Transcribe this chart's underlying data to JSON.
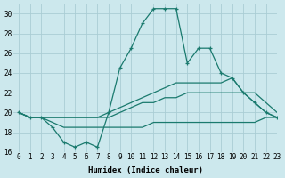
{
  "xlabel": "Humidex (Indice chaleur)",
  "xlim": [
    -0.5,
    23
  ],
  "ylim": [
    16,
    31
  ],
  "yticks": [
    16,
    18,
    20,
    22,
    24,
    26,
    28,
    30
  ],
  "xticks": [
    0,
    1,
    2,
    3,
    4,
    5,
    6,
    7,
    8,
    9,
    10,
    11,
    12,
    13,
    14,
    15,
    16,
    17,
    18,
    19,
    20,
    21,
    22,
    23
  ],
  "bg_color": "#cce8ed",
  "grid_color": "#aacdd4",
  "line_color": "#1a7a6e",
  "lines": [
    {
      "x": [
        0,
        1,
        2,
        3,
        4,
        5,
        6,
        7,
        8,
        9,
        10,
        11,
        12,
        13,
        14,
        15,
        16,
        17,
        18,
        19,
        20,
        21,
        22,
        23
      ],
      "y": [
        20,
        19.5,
        19.5,
        19,
        18.5,
        18.5,
        18.5,
        18.5,
        18.5,
        18.5,
        18.5,
        18.5,
        19,
        19,
        19,
        19,
        19,
        19,
        19,
        19,
        19,
        19,
        19.5,
        19.5
      ],
      "marker": false,
      "lw": 0.9
    },
    {
      "x": [
        0,
        1,
        2,
        3,
        4,
        5,
        6,
        7,
        8,
        9,
        10,
        11,
        12,
        13,
        14,
        15,
        16,
        17,
        18,
        19,
        20,
        21,
        22,
        23
      ],
      "y": [
        20,
        19.5,
        19.5,
        19.5,
        19.5,
        19.5,
        19.5,
        19.5,
        19.5,
        20,
        20.5,
        21,
        21,
        21.5,
        21.5,
        22,
        22,
        22,
        22,
        22,
        22,
        22,
        21,
        20
      ],
      "marker": false,
      "lw": 0.9
    },
    {
      "x": [
        0,
        1,
        2,
        3,
        4,
        5,
        6,
        7,
        8,
        9,
        10,
        11,
        12,
        13,
        14,
        15,
        16,
        17,
        18,
        19,
        20,
        21,
        22,
        23
      ],
      "y": [
        20,
        19.5,
        19.5,
        19.5,
        19.5,
        19.5,
        19.5,
        19.5,
        20,
        20.5,
        21,
        21.5,
        22,
        22.5,
        23,
        23,
        23,
        23,
        23,
        23.5,
        22,
        21,
        20,
        19.5
      ],
      "marker": false,
      "lw": 0.9
    },
    {
      "x": [
        0,
        1,
        2,
        3,
        4,
        5,
        6,
        7,
        8,
        9,
        10,
        11,
        12,
        13,
        14,
        15,
        16,
        17,
        18,
        19,
        20,
        21,
        22,
        23
      ],
      "y": [
        20,
        19.5,
        19.5,
        18.5,
        17,
        16.5,
        17,
        16.5,
        20,
        24.5,
        26.5,
        29,
        30.5,
        30.5,
        30.5,
        25,
        26.5,
        26.5,
        24,
        23.5,
        22,
        21,
        20,
        19.5
      ],
      "marker": true,
      "lw": 0.9
    }
  ]
}
